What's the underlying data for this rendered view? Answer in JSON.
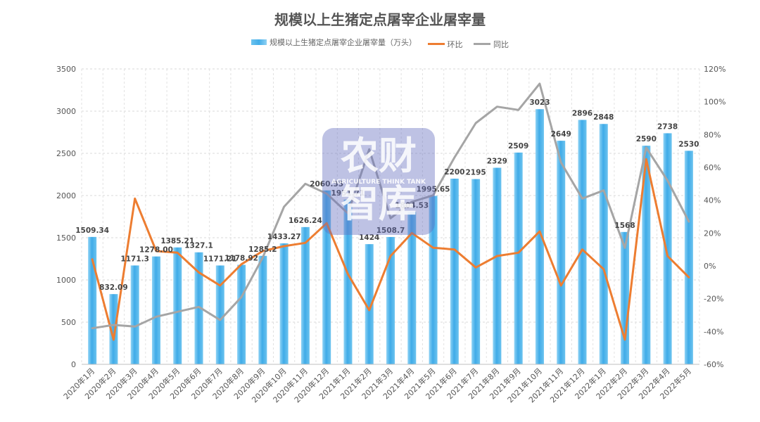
{
  "chart_data": {
    "type": "bar",
    "title": "规模以上生猪定点屠宰企业屠宰量",
    "categories": [
      "2020年1月",
      "2020年2月",
      "2020年3月",
      "2020年4月",
      "2020年5月",
      "2020年6月",
      "2020年7月",
      "2020年8月",
      "2020年9月",
      "2020年10月",
      "2020年11月",
      "2020年12月",
      "2021年1月",
      "2021年2月",
      "2021年3月",
      "2021年4月",
      "2021年5月",
      "2021年6月",
      "2021年7月",
      "2021年8月",
      "2021年9月",
      "2021年10月",
      "2021年11月",
      "2021年12月",
      "2022年1月",
      "2022年2月",
      "2022年3月",
      "2022年4月",
      "2022年5月"
    ],
    "bar_series": {
      "name": "规模以上生猪定点屠宰企业屠宰量（万头）",
      "values": [
        1509.34,
        832.09,
        1171.3,
        1278.0,
        1385.21,
        1327.1,
        1171.21,
        1178.92,
        1285.2,
        1433.27,
        1626.24,
        2060.35,
        1951.71,
        1424,
        1508.7,
        1804.53,
        1995.65,
        2200,
        2195,
        2329,
        2509,
        3023,
        2649,
        2896,
        2848,
        1568,
        2590,
        2738,
        2530
      ],
      "labels": [
        "1509.34",
        "832.09",
        "1171.3",
        "1278.00",
        "1385.21",
        "1327.1",
        "1171.21",
        "1178.92",
        "1285.2",
        "1433.27",
        "1626.24",
        "2060.35",
        "1951.71",
        "1424",
        "1508.7",
        "1804.53",
        "1995.65",
        "2200",
        "2195",
        "2329",
        "2509",
        "3023",
        "2649",
        "2896",
        "2848",
        "1568",
        "2590",
        "2738",
        "2530"
      ],
      "color": "#44aee9"
    },
    "line_series": [
      {
        "name": "环比",
        "color": "#ed7d31",
        "values": [
          4,
          -45,
          41,
          9,
          8,
          -4,
          -12,
          1,
          9,
          12,
          14,
          26,
          -5,
          -27,
          6,
          20,
          11,
          10,
          -1,
          6,
          8,
          21,
          -12,
          10,
          -2,
          -45,
          65,
          6,
          -7
        ]
      },
      {
        "name": "同比",
        "color": "#a5a5a5",
        "values": [
          -38,
          -36,
          -37,
          -31,
          -28,
          -25,
          -33,
          -19,
          5,
          36,
          50,
          44,
          32,
          71,
          29,
          39,
          43,
          66,
          87,
          97,
          95,
          111,
          63,
          41,
          46,
          11,
          72,
          52,
          27
        ]
      }
    ],
    "y_left": {
      "min": 0,
      "max": 3500,
      "step": 500,
      "ticks": [
        "0",
        "500",
        "1000",
        "1500",
        "2000",
        "2500",
        "3000",
        "3500"
      ]
    },
    "y_right": {
      "min": -60,
      "max": 120,
      "step": 20,
      "ticks": [
        "-60%",
        "-40%",
        "-20%",
        "0%",
        "20%",
        "40%",
        "60%",
        "80%",
        "100%",
        "120%"
      ]
    },
    "grid": true,
    "legend_position": "top"
  },
  "watermark": {
    "main_text": "农财\n智库",
    "sub_text": "AGRICULTURE THINK TANK"
  }
}
